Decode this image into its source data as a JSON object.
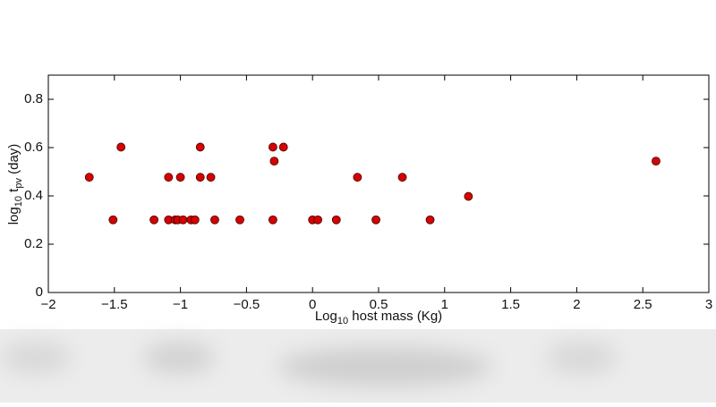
{
  "chart_data": {
    "type": "scatter",
    "x_label": [
      "Log",
      "10",
      " host mass (Kg)"
    ],
    "y_label": [
      "log",
      "10",
      " t",
      "pv",
      " (day)"
    ],
    "x": [
      -1.69,
      -1.51,
      -1.45,
      -1.2,
      -1.09,
      -1.09,
      -1.04,
      -1.02,
      -1.0,
      -0.98,
      -0.92,
      -0.89,
      -0.85,
      -0.85,
      -0.77,
      -0.74,
      -0.55,
      -0.3,
      -0.29,
      -0.3,
      -0.22,
      0.0,
      0.04,
      0.18,
      0.34,
      0.48,
      0.68,
      0.89,
      1.18,
      2.6
    ],
    "values": [
      0.477,
      0.301,
      0.602,
      0.301,
      0.477,
      0.301,
      0.301,
      0.301,
      0.477,
      0.301,
      0.301,
      0.301,
      0.602,
      0.477,
      0.477,
      0.301,
      0.301,
      0.602,
      0.544,
      0.301,
      0.602,
      0.301,
      0.301,
      0.301,
      0.477,
      0.301,
      0.477,
      0.301,
      0.398,
      0.544
    ],
    "color": "#d60000",
    "xlim": [
      -2,
      3
    ],
    "ylim": [
      0,
      0.9
    ],
    "xticks": [
      {
        "value": -2,
        "label": "−2"
      },
      {
        "value": -1.5,
        "label": "−1.5"
      },
      {
        "value": -1,
        "label": "−1"
      },
      {
        "value": -0.5,
        "label": "−0.5"
      },
      0,
      0.5,
      1,
      1.5,
      2,
      2.5,
      3
    ],
    "yticks": [
      0,
      0.2,
      0.4,
      0.6,
      0.8
    ]
  }
}
